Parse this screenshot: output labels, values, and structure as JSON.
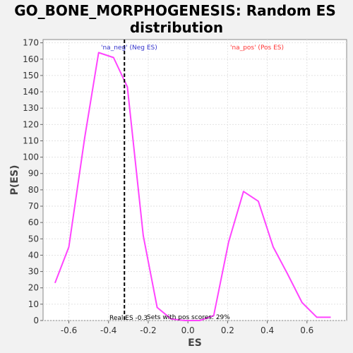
{
  "chart_data": {
    "type": "line",
    "title_line1": "GO_BONE_MORPHOGENESIS: Random ES",
    "title_line2": "distribution",
    "xlabel": "ES",
    "ylabel": "P(ES)",
    "xlim": [
      -0.73,
      0.8
    ],
    "ylim": [
      0,
      172
    ],
    "x_ticks": [
      -0.6,
      -0.4,
      -0.2,
      0.0,
      0.2,
      0.4,
      0.6
    ],
    "x_tick_labels": [
      "-0.6",
      "-0.4",
      "-0.2",
      "0.0",
      "0.2",
      "0.4",
      "0.6"
    ],
    "y_ticks": [
      0,
      10,
      20,
      30,
      40,
      50,
      60,
      70,
      80,
      90,
      100,
      110,
      120,
      130,
      140,
      150,
      160,
      170
    ],
    "y_tick_labels": [
      "0",
      "10",
      "20",
      "30",
      "40",
      "50",
      "60",
      "70",
      "80",
      "90",
      "100",
      "110",
      "120",
      "130",
      "140",
      "150",
      "160",
      "170"
    ],
    "grid": true,
    "series": [
      {
        "color": "#ff44ff",
        "x": [
          -0.67,
          -0.6,
          -0.52,
          -0.45,
          -0.375,
          -0.305,
          -0.225,
          -0.155,
          -0.085,
          -0.015,
          0.06,
          0.13,
          0.205,
          0.28,
          0.355,
          0.43,
          0.5,
          0.575,
          0.65,
          0.72
        ],
        "y": [
          23,
          45,
          112,
          164,
          161,
          143,
          52,
          8,
          1,
          0,
          0,
          3,
          48,
          79,
          73,
          45,
          29,
          11,
          2,
          2
        ]
      }
    ],
    "real_es": -0.32,
    "real_es_label": "Real ES -0.3",
    "neg_label": "'na_neg' (Neg ES)",
    "neg_label_color": "#3333cc",
    "pos_label": "'na_pos' (Pos ES)",
    "pos_label_color": "#ff3333",
    "pos_scores_label": "Sets with pos scores: 29%"
  }
}
